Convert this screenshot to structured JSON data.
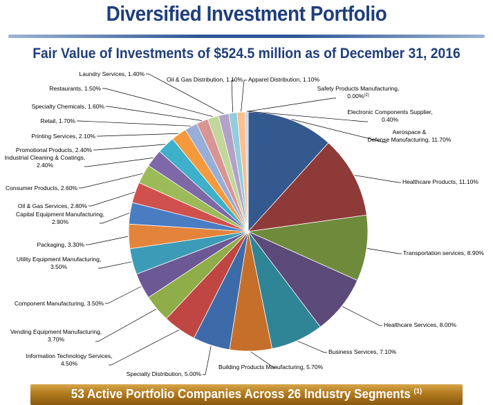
{
  "page": {
    "title": "Diversified Investment Portfolio",
    "subtitle": "Fair Value of Investments of $524.5 million as of December 31, 2016",
    "footer": "53 Active Portfolio Companies Across 26 Industry Segments",
    "footer_note": "(1)"
  },
  "chart_data": {
    "type": "pie",
    "title": "Fair Value of Investments of $524.5 million as of December 31, 2016",
    "slices": [
      {
        "label": "Aerospace & Defense Manufacturing, 11.70%",
        "value": 11.7,
        "color": "#34598f"
      },
      {
        "label": "Healthcare Products, 11.10%",
        "value": 11.1,
        "color": "#8e3a38"
      },
      {
        "label": "Transportation services, 8.90%",
        "value": 8.9,
        "color": "#6e8b3c"
      },
      {
        "label": "Healthcare Services, 8.00%",
        "value": 8.0,
        "color": "#5c4a7a"
      },
      {
        "label": "Business Services, 7.10%",
        "value": 7.1,
        "color": "#2f8496"
      },
      {
        "label": "Building Products Manufacturing, 5.70%",
        "value": 5.7,
        "color": "#c66f2b"
      },
      {
        "label": "Specialty Distribution, 5.00%",
        "value": 5.0,
        "color": "#3d6aa8"
      },
      {
        "label": "Information Technology Services, 4.50%",
        "value": 4.5,
        "color": "#bf4642"
      },
      {
        "label": "Vending Equipment Manufacturing, 3.70%",
        "value": 3.7,
        "color": "#8fad48"
      },
      {
        "label": "Component Manufacturing, 3.50%",
        "value": 3.5,
        "color": "#6d5896"
      },
      {
        "label": "Utility Equipment Manufacturing, 3.50%",
        "value": 3.5,
        "color": "#3c9bb6"
      },
      {
        "label": "Packaging, 3.30%",
        "value": 3.3,
        "color": "#e4843a"
      },
      {
        "label": "Capital Equipment Manufacturing, 2.90%",
        "value": 2.9,
        "color": "#4a7cc2"
      },
      {
        "label": "Oil & Gas Services, 2.80%",
        "value": 2.8,
        "color": "#cf504d"
      },
      {
        "label": "Consumer Products, 2.60%",
        "value": 2.6,
        "color": "#9bbb59"
      },
      {
        "label": "Industrial Cleaning & Coatings, 2.40%",
        "value": 2.4,
        "color": "#7e68a8"
      },
      {
        "label": "Promotional Products, 2.40%",
        "value": 2.4,
        "color": "#3fb0c9"
      },
      {
        "label": "Printing Services, 2.10%",
        "value": 2.1,
        "color": "#f59a3c"
      },
      {
        "label": "Retail, 1.70%",
        "value": 1.7,
        "color": "#97aed9"
      },
      {
        "label": "Specialty Chemicals, 1.60%",
        "value": 1.6,
        "color": "#d99593"
      },
      {
        "label": "Restaurants, 1.50%",
        "value": 1.5,
        "color": "#c3d69b"
      },
      {
        "label": "Laundry Services, 1.40%",
        "value": 1.4,
        "color": "#b3a2c7"
      },
      {
        "label": "Oil & Gas Distribution, 1.10%",
        "value": 1.1,
        "color": "#93cddd"
      },
      {
        "label": "Apparel Distribution, 1.10%",
        "value": 1.1,
        "color": "#fac090"
      },
      {
        "label": "Electronic Components Supplier, 0.40%",
        "value": 0.4,
        "color": "#c5d3ea"
      },
      {
        "label": "Safety Products Manufacturing, 0.00%",
        "value": 0.0,
        "color": "#e6b9b8",
        "note": "(2)"
      }
    ]
  }
}
